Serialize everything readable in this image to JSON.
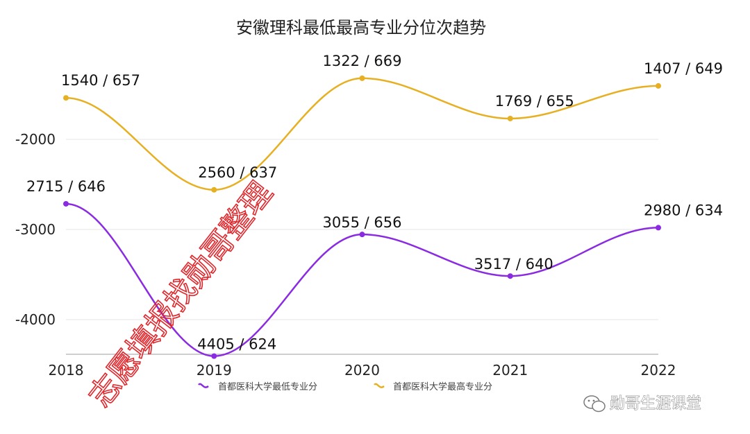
{
  "chart_data": {
    "type": "line",
    "title": "安徽理科最低最高专业分位次趋势",
    "categories": [
      "2018",
      "2019",
      "2020",
      "2021",
      "2022"
    ],
    "yticks": [
      -2000,
      -3000,
      -4000
    ],
    "ylim": [
      -4400,
      -1300
    ],
    "grid": true,
    "legend_position": "bottom",
    "series": [
      {
        "name": "首都医科大学最低专业分",
        "color": "#8a2be2",
        "values": [
          -2715,
          -4405,
          -3055,
          -3517,
          -2980
        ],
        "labels": [
          "2715 / 646",
          "4405 / 624",
          "3055 / 656",
          "3517 / 640",
          "2980 / 634"
        ]
      },
      {
        "name": "首都医科大学最高专业分",
        "color": "#e6b022",
        "values": [
          -1540,
          -2560,
          -1322,
          -1769,
          -1407
        ],
        "labels": [
          "1540 / 657",
          "2560 / 637",
          "1322 / 669",
          "1769 / 655",
          "1407 / 649"
        ]
      }
    ]
  },
  "watermark": {
    "text": "志愿填报找勋哥整理",
    "color": "#e0262b"
  },
  "brand": {
    "text": "勋哥生涯课堂",
    "icon": "wechat-icon"
  }
}
